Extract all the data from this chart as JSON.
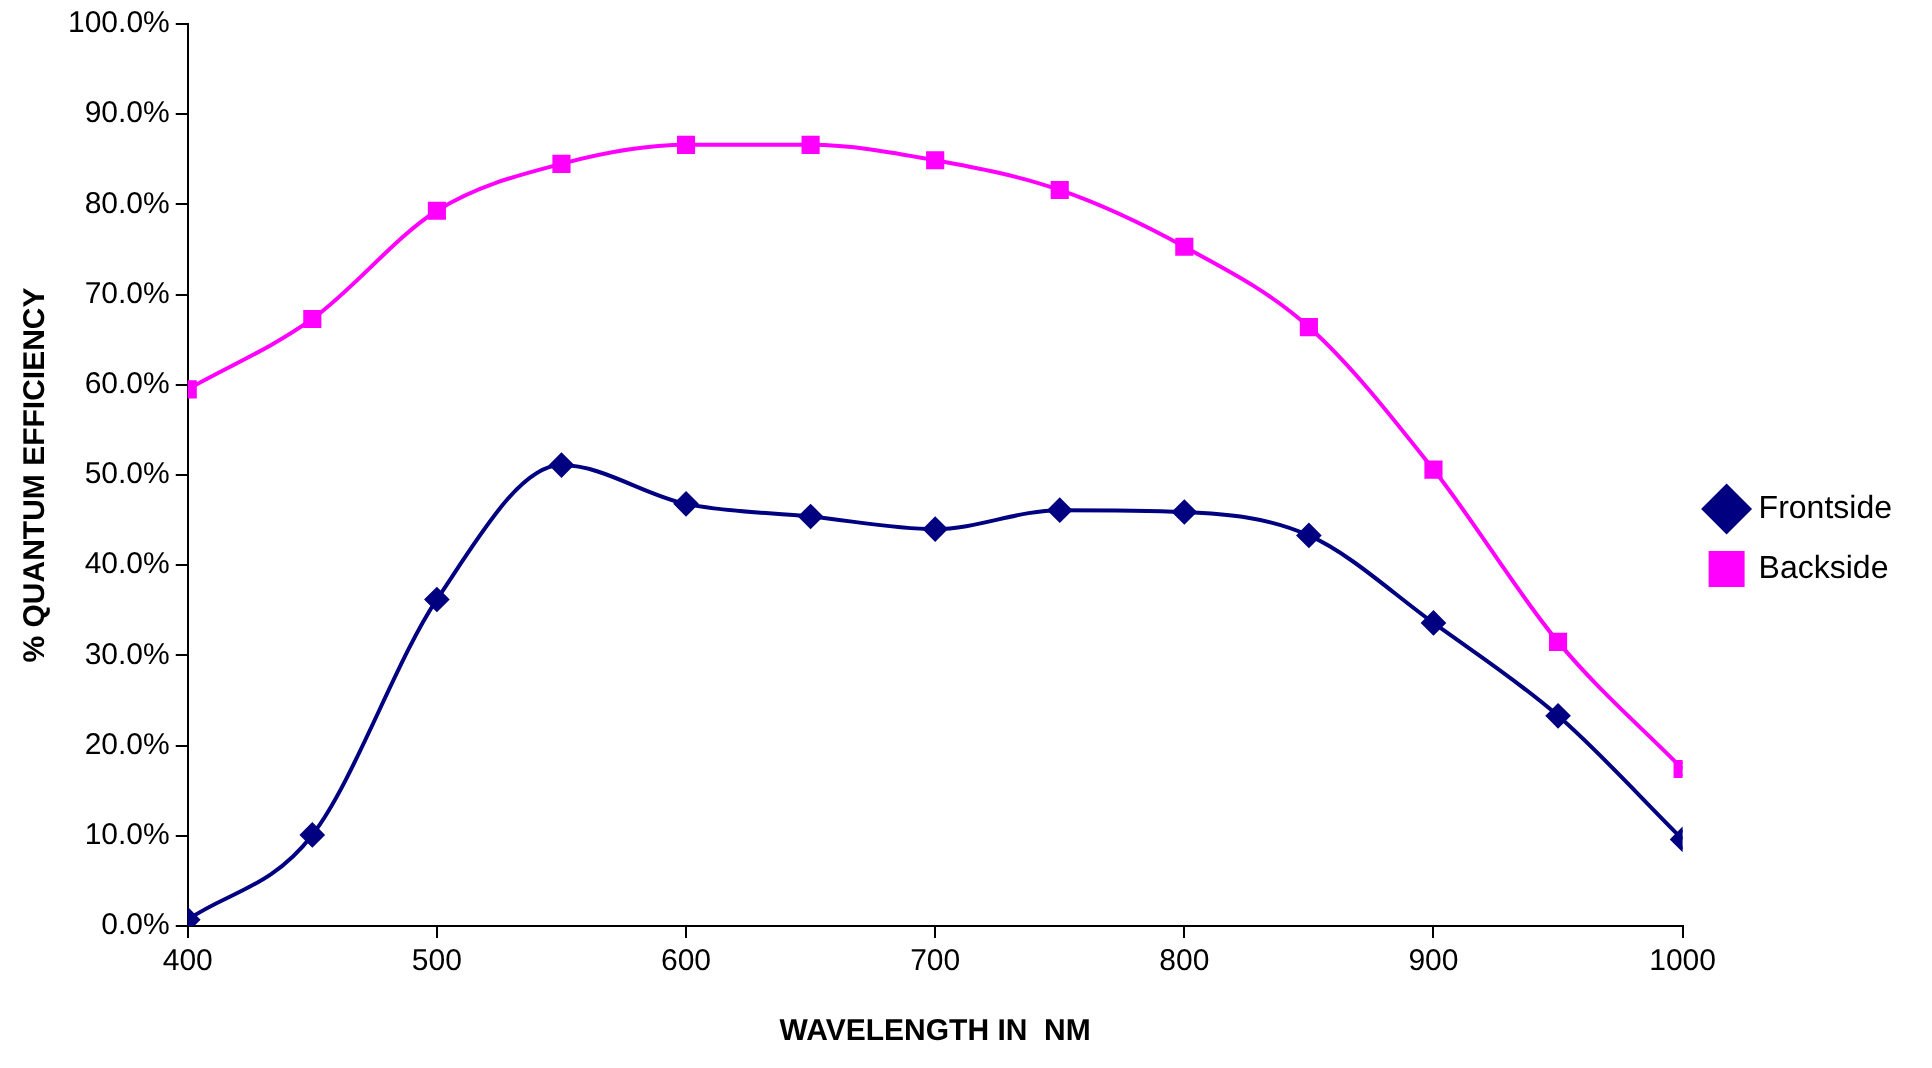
{
  "chart_data": {
    "type": "line",
    "xlabel": "WAVELENGTH IN  NM",
    "ylabel": "% QUANTUM EFFICIENCY",
    "x": [
      400,
      450,
      500,
      550,
      600,
      650,
      700,
      750,
      800,
      850,
      900,
      950,
      1000
    ],
    "series": [
      {
        "name": "Frontside",
        "color": "#000080",
        "marker": "diamond",
        "values": [
          0.7,
          10.1,
          36.2,
          51.1,
          46.8,
          45.4,
          44.0,
          46.1,
          45.9,
          43.3,
          33.6,
          23.3,
          9.6
        ]
      },
      {
        "name": "Backside",
        "color": "#ff00ff",
        "marker": "square",
        "values": [
          59.5,
          67.3,
          79.3,
          84.5,
          86.6,
          86.6,
          84.9,
          81.6,
          75.3,
          66.4,
          50.6,
          31.5,
          17.4
        ]
      }
    ],
    "xlim": [
      400,
      1000
    ],
    "xticks": [
      400,
      500,
      600,
      700,
      800,
      900,
      1000
    ],
    "ylim": [
      0,
      100
    ],
    "yticks": [
      {
        "value": 0,
        "label": "0.0%"
      },
      {
        "value": 10,
        "label": "10.0%"
      },
      {
        "value": 20,
        "label": "20.0%"
      },
      {
        "value": 30,
        "label": "30.0%"
      },
      {
        "value": 40,
        "label": "40.0%"
      },
      {
        "value": 50,
        "label": "50.0%"
      },
      {
        "value": 60,
        "label": "60.0%"
      },
      {
        "value": 70,
        "label": "70.0%"
      },
      {
        "value": 80,
        "label": "80.0%"
      },
      {
        "value": 90,
        "label": "90.0%"
      },
      {
        "value": 100,
        "label": "100.0%"
      }
    ],
    "grid": false,
    "legend": "right",
    "line_style": "solid"
  }
}
